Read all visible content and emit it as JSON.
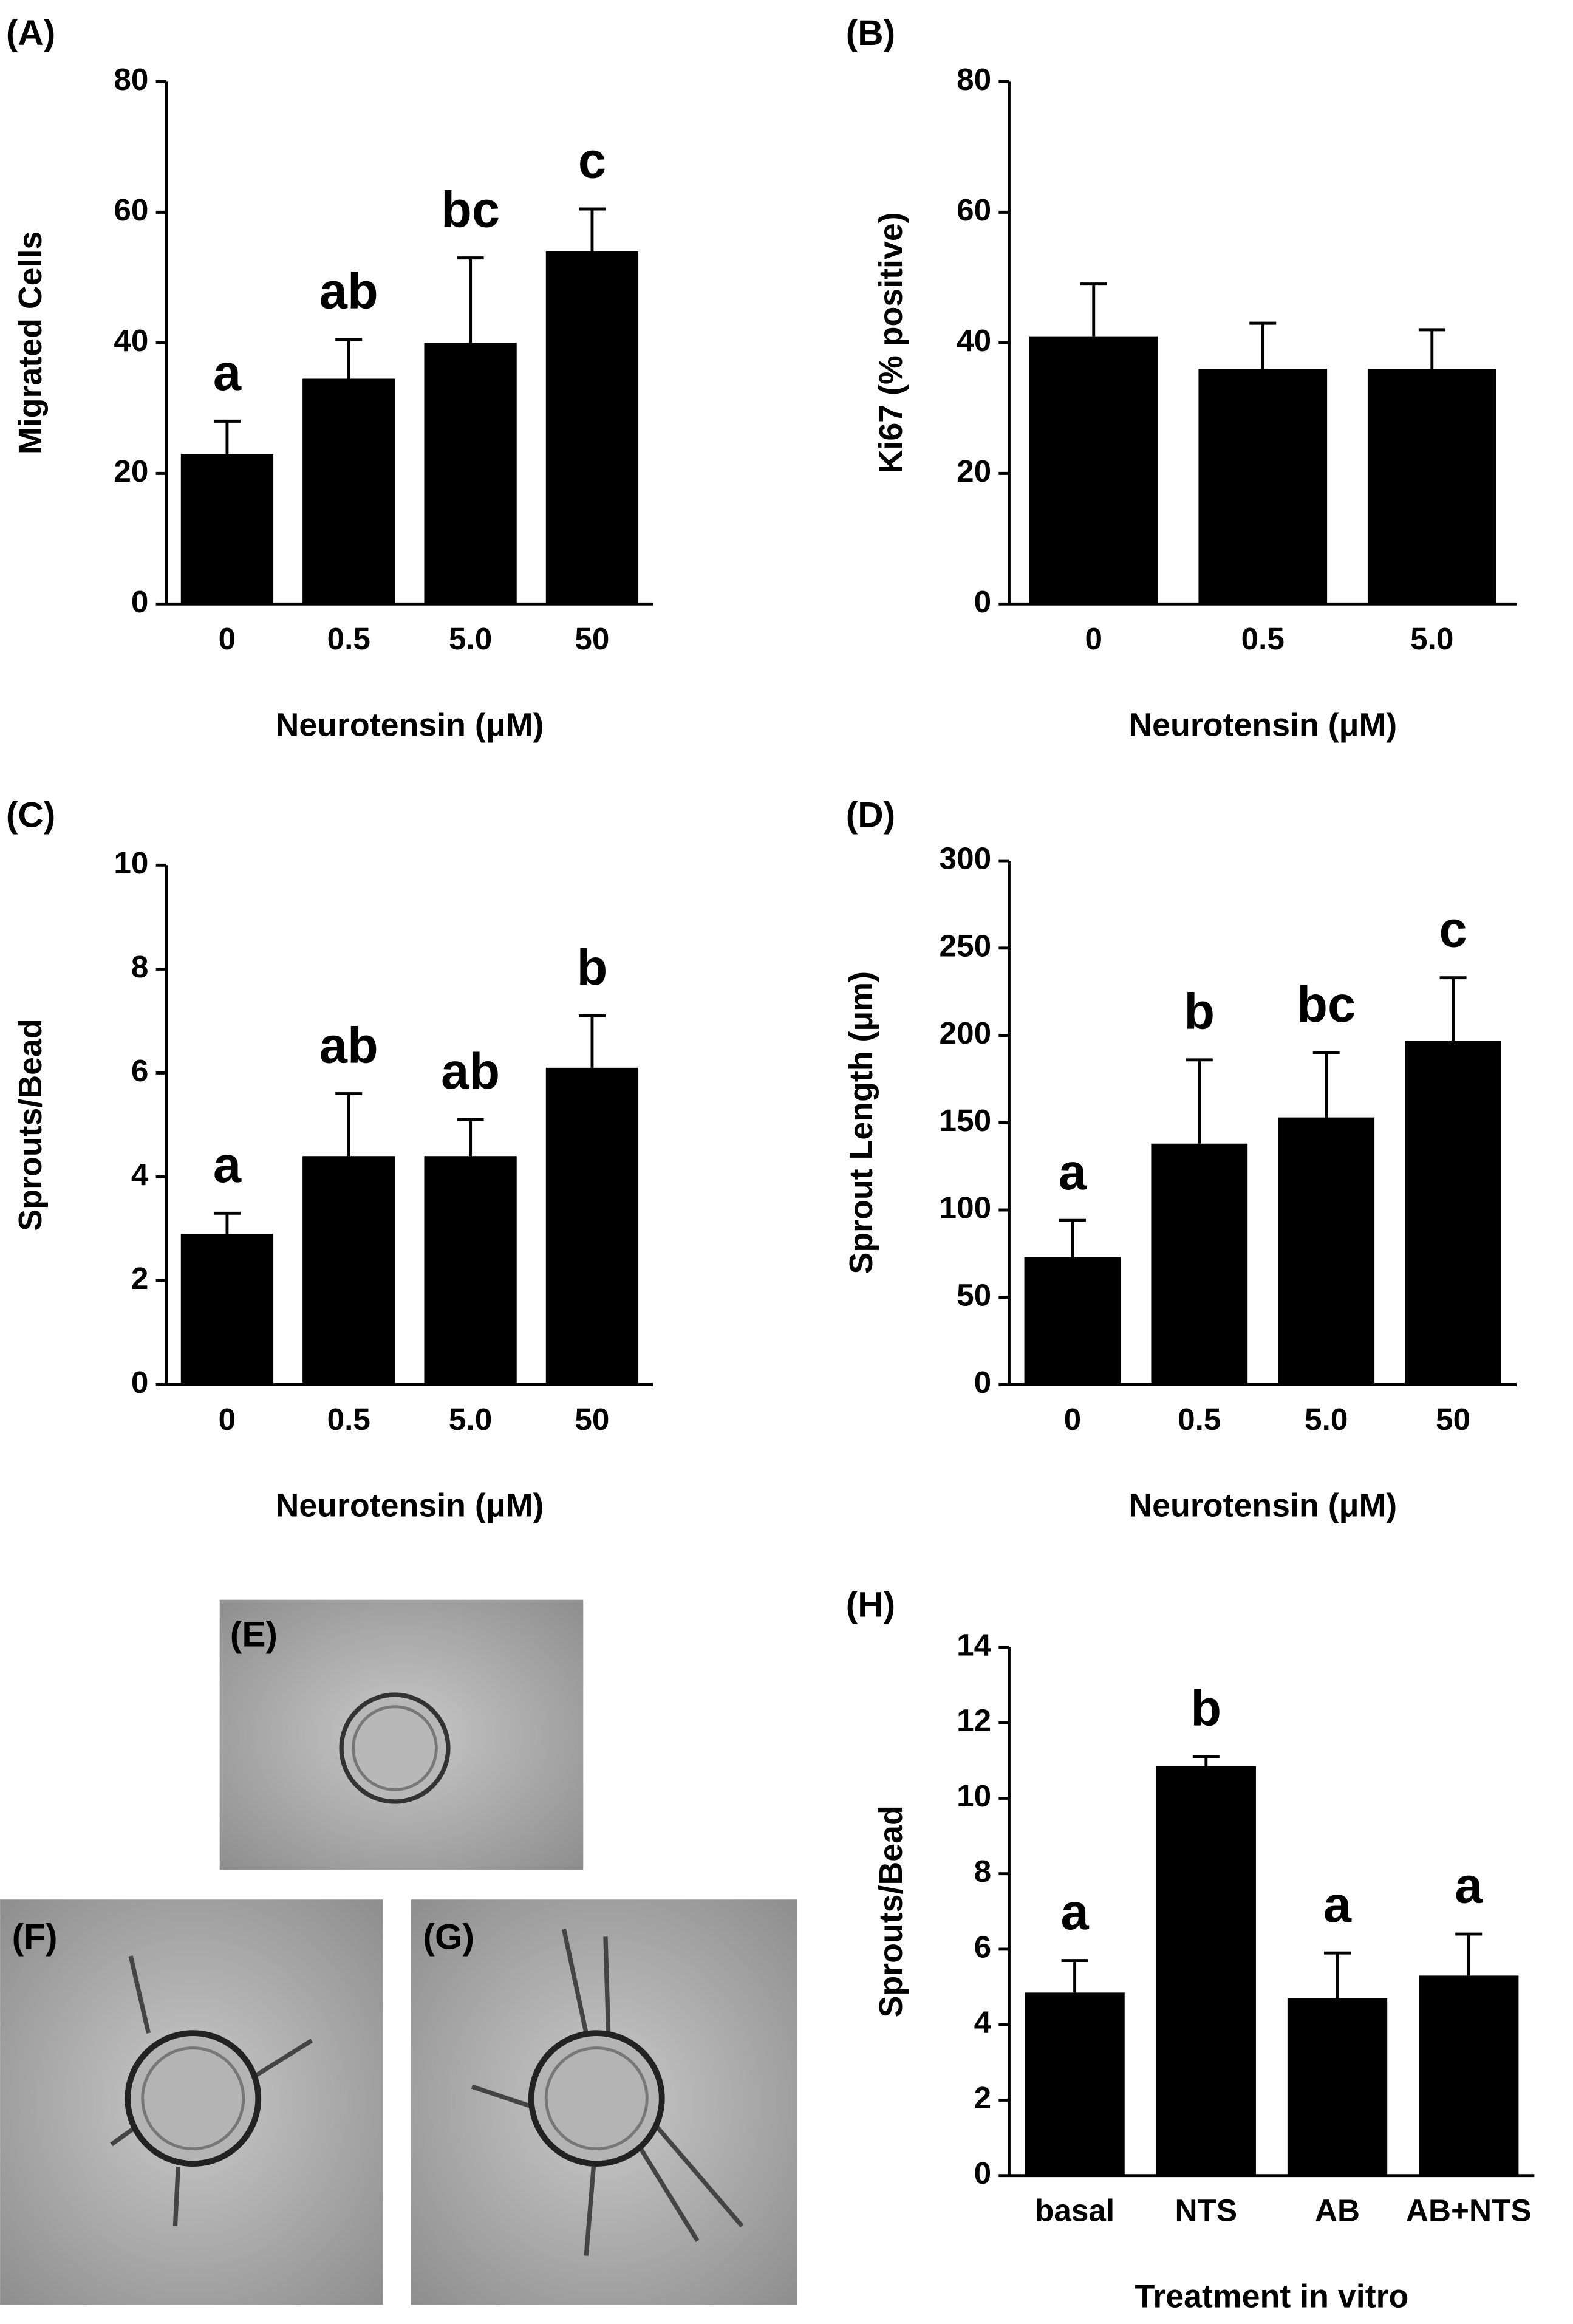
{
  "chart_data": [
    {
      "type": "bar",
      "panel_label": "(A)",
      "ylabel": "Migrated Cells",
      "xlabel": "Neurotensin (μM)",
      "categories": [
        "0",
        "0.5",
        "5.0",
        "50"
      ],
      "values": [
        23,
        34.5,
        40,
        54
      ],
      "errors": [
        5,
        6,
        13,
        6.5
      ],
      "letters": [
        "a",
        "ab",
        "bc",
        "c"
      ],
      "color": "#000000",
      "ylim": [
        0,
        80
      ],
      "yticks": [
        0,
        20,
        40,
        60,
        80
      ]
    },
    {
      "type": "bar",
      "panel_label": "(B)",
      "ylabel": "Ki67 (% positive)",
      "xlabel": "Neurotensin (μM)",
      "categories": [
        "0",
        "0.5",
        "5.0"
      ],
      "values": [
        41,
        36,
        36
      ],
      "errors": [
        8,
        7,
        6
      ],
      "color": "#000000",
      "ylim": [
        0,
        80
      ],
      "yticks": [
        0,
        20,
        40,
        60,
        80
      ]
    },
    {
      "type": "bar",
      "panel_label": "(C)",
      "ylabel": "Sprouts/Bead",
      "xlabel": "Neurotensin (μM)",
      "categories": [
        "0",
        "0.5",
        "5.0",
        "50"
      ],
      "values": [
        2.9,
        4.4,
        4.4,
        6.1
      ],
      "errors": [
        0.4,
        1.2,
        0.7,
        1.0
      ],
      "letters": [
        "a",
        "ab",
        "ab",
        "b"
      ],
      "color": "#000000",
      "ylim": [
        0,
        10
      ],
      "yticks": [
        0,
        2,
        4,
        6,
        8,
        10
      ]
    },
    {
      "type": "bar",
      "panel_label": "(D)",
      "ylabel": "Sprout Length (μm)",
      "xlabel": "Neurotensin (μM)",
      "categories": [
        "0",
        "0.5",
        "5.0",
        "50"
      ],
      "values": [
        73,
        138,
        153,
        197
      ],
      "errors": [
        21,
        48,
        37,
        36
      ],
      "letters": [
        "a",
        "b",
        "bc",
        "c"
      ],
      "color": "#000000",
      "ylim": [
        0,
        300
      ],
      "yticks": [
        0,
        50,
        100,
        150,
        200,
        250,
        300
      ]
    },
    {
      "type": "bar",
      "panel_label": "(H)",
      "ylabel": "Sprouts/Bead",
      "xlabel": "Treatment in vitro",
      "categories": [
        "basal",
        "NTS",
        "AB",
        "AB+NTS"
      ],
      "values": [
        4.85,
        10.85,
        4.7,
        5.3
      ],
      "errors": [
        0.85,
        0.25,
        1.2,
        1.1
      ],
      "letters": [
        "a",
        "b",
        "a",
        "a"
      ],
      "color": "#000000",
      "ylim": [
        0,
        14
      ],
      "yticks": [
        0,
        2,
        4,
        6,
        8,
        10,
        12,
        14
      ]
    }
  ],
  "micrographs": [
    {
      "label": "(E)"
    },
    {
      "label": "(F)"
    },
    {
      "label": "(G)"
    }
  ]
}
